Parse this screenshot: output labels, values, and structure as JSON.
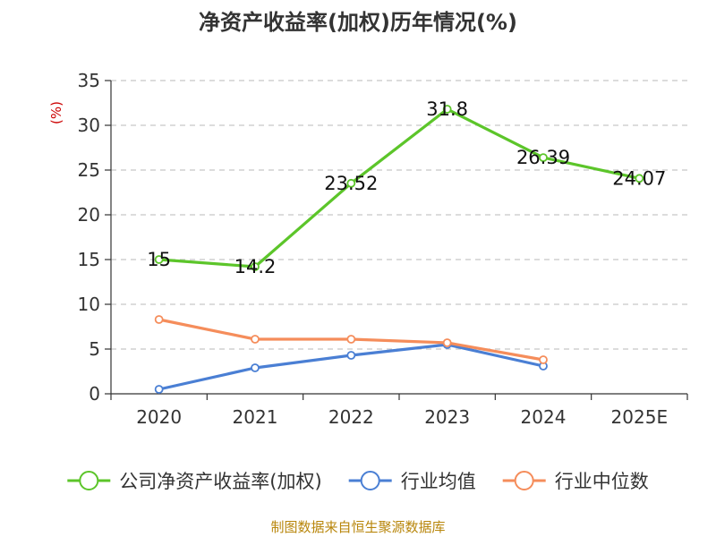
{
  "chart_data": {
    "type": "line",
    "title": "净资产收益率(加权)历年情况(%)",
    "ylabel": "(%)",
    "xlabel": "",
    "categories": [
      "2020",
      "2021",
      "2022",
      "2023",
      "2024",
      "2025E"
    ],
    "yticks": [
      "0",
      "5",
      "10",
      "15",
      "20",
      "25",
      "30",
      "35"
    ],
    "ylim": [
      0,
      35
    ],
    "grid": true,
    "legend_position": "bottom",
    "series": [
      {
        "name": "公司净资产收益率(加权)",
        "color": "#5cc52a",
        "values": [
          15,
          14.2,
          23.52,
          31.8,
          26.39,
          24.07
        ],
        "labels": [
          "15",
          "14.2",
          "23.52",
          "31.8",
          "26.39",
          "24.07"
        ]
      },
      {
        "name": "行业均值",
        "color": "#4a7fd4",
        "values": [
          0.5,
          2.9,
          4.3,
          5.5,
          3.1,
          null
        ]
      },
      {
        "name": "行业中位数",
        "color": "#f58d5b",
        "values": [
          8.3,
          6.1,
          6.1,
          5.7,
          3.8,
          null
        ]
      }
    ]
  },
  "source_text": "制图数据来自恒生聚源数据库"
}
